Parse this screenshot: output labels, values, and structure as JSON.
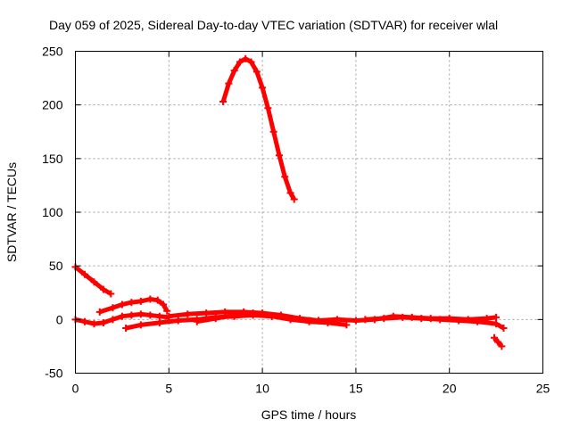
{
  "chart_data": {
    "type": "scatter",
    "title": "Day 059 of 2025, Sidereal Day-to-day VTEC variation (SDTVAR) for receiver wlal",
    "xlabel": "GPS time / hours",
    "ylabel": "SDTVAR / TECUs",
    "xlim": [
      0,
      25
    ],
    "ylim": [
      -50,
      250
    ],
    "xticks": [
      0,
      5,
      10,
      15,
      20,
      25
    ],
    "yticks": [
      -50,
      0,
      50,
      100,
      150,
      200,
      250
    ],
    "xtick_labels": [
      "0",
      "5",
      "10",
      "15",
      "20",
      "25"
    ],
    "ytick_labels": [
      "-50",
      "0",
      "50",
      "100",
      "150",
      "200",
      "250"
    ],
    "grid": true,
    "legend": "none",
    "marker_color": "#ff0000",
    "series": [
      {
        "x": [
          7.9,
          8.2,
          8.5,
          8.8,
          9.1,
          9.4,
          9.7,
          10.0,
          10.3,
          10.6,
          10.9,
          11.2,
          11.5,
          11.7
        ],
        "y": [
          203,
          220,
          232,
          240,
          243,
          240,
          231,
          216,
          197,
          175,
          153,
          133,
          118,
          112
        ]
      },
      {
        "x": [
          0.0,
          0.5,
          1.0,
          1.5,
          1.9
        ],
        "y": [
          49,
          42,
          35,
          28,
          24
        ]
      },
      {
        "x": [
          1.3,
          2.0,
          2.5,
          3.0,
          3.5,
          4.0,
          4.4,
          4.7,
          4.9
        ],
        "y": [
          7,
          11,
          14,
          16,
          17,
          19,
          18,
          14,
          8
        ]
      },
      {
        "x": [
          0.0,
          0.5,
          1.0,
          1.5,
          2.0,
          2.5,
          3.0,
          3.5,
          4.0,
          4.5,
          5.0
        ],
        "y": [
          0,
          -2,
          -4,
          -3,
          0,
          3,
          4,
          5,
          4,
          3,
          2
        ]
      },
      {
        "x": [
          2.7,
          3.5,
          4.5,
          5.5,
          6.5,
          7.5,
          8.5,
          9.5,
          10.5,
          11.5,
          12.5
        ],
        "y": [
          -8,
          -5,
          -3,
          -1,
          0,
          2,
          3,
          4,
          3,
          1,
          -1
        ]
      },
      {
        "x": [
          5.0,
          6.0,
          7.0,
          8.0,
          9.0,
          10.0,
          11.0,
          12.0,
          13.0,
          14.0,
          15.0,
          16.0,
          17.0,
          18.0,
          19.0,
          20.0,
          21.0,
          22.0,
          22.5
        ],
        "y": [
          3,
          5,
          6,
          7,
          7,
          6,
          4,
          1,
          -1,
          0,
          -1,
          0,
          3,
          2,
          1,
          1,
          0,
          1,
          2
        ]
      },
      {
        "x": [
          6.5,
          7.5,
          8.5,
          9.5,
          10.5,
          11.5,
          12.5,
          13.5,
          14.5
        ],
        "y": [
          -2,
          1,
          4,
          6,
          3,
          0,
          -2,
          -3,
          -5
        ]
      },
      {
        "x": [
          15.5,
          16.5,
          17.5,
          18.5,
          19.5,
          20.5,
          21.5,
          22.5,
          22.9
        ],
        "y": [
          0,
          1,
          2,
          1,
          0,
          -1,
          -2,
          -4,
          -8
        ]
      },
      {
        "x": [
          22.4,
          22.6,
          22.8
        ],
        "y": [
          -17,
          -21,
          -25
        ]
      }
    ]
  }
}
